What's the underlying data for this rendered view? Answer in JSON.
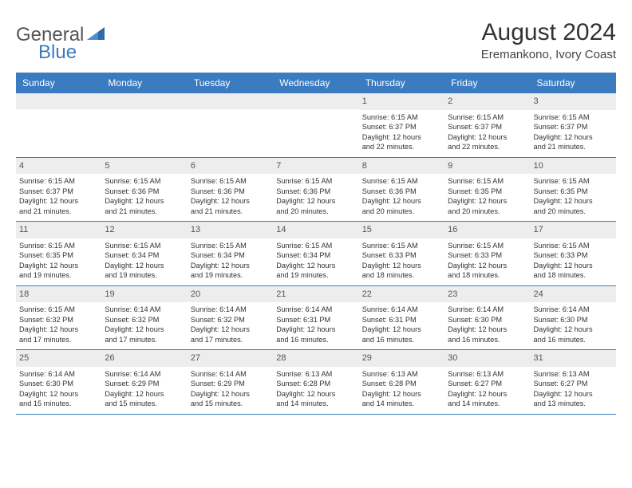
{
  "logo": {
    "part1": "General",
    "part2": "Blue"
  },
  "title": "August 2024",
  "location": "Eremankono, Ivory Coast",
  "colors": {
    "header_blue": "#3b7bbf",
    "daynum_bg": "#ededed",
    "text": "#333333"
  },
  "days_of_week": [
    "Sunday",
    "Monday",
    "Tuesday",
    "Wednesday",
    "Thursday",
    "Friday",
    "Saturday"
  ],
  "weeks": [
    [
      null,
      null,
      null,
      null,
      {
        "n": "1",
        "sr": "Sunrise: 6:15 AM",
        "ss": "Sunset: 6:37 PM",
        "d1": "Daylight: 12 hours",
        "d2": "and 22 minutes."
      },
      {
        "n": "2",
        "sr": "Sunrise: 6:15 AM",
        "ss": "Sunset: 6:37 PM",
        "d1": "Daylight: 12 hours",
        "d2": "and 22 minutes."
      },
      {
        "n": "3",
        "sr": "Sunrise: 6:15 AM",
        "ss": "Sunset: 6:37 PM",
        "d1": "Daylight: 12 hours",
        "d2": "and 21 minutes."
      }
    ],
    [
      {
        "n": "4",
        "sr": "Sunrise: 6:15 AM",
        "ss": "Sunset: 6:37 PM",
        "d1": "Daylight: 12 hours",
        "d2": "and 21 minutes."
      },
      {
        "n": "5",
        "sr": "Sunrise: 6:15 AM",
        "ss": "Sunset: 6:36 PM",
        "d1": "Daylight: 12 hours",
        "d2": "and 21 minutes."
      },
      {
        "n": "6",
        "sr": "Sunrise: 6:15 AM",
        "ss": "Sunset: 6:36 PM",
        "d1": "Daylight: 12 hours",
        "d2": "and 21 minutes."
      },
      {
        "n": "7",
        "sr": "Sunrise: 6:15 AM",
        "ss": "Sunset: 6:36 PM",
        "d1": "Daylight: 12 hours",
        "d2": "and 20 minutes."
      },
      {
        "n": "8",
        "sr": "Sunrise: 6:15 AM",
        "ss": "Sunset: 6:36 PM",
        "d1": "Daylight: 12 hours",
        "d2": "and 20 minutes."
      },
      {
        "n": "9",
        "sr": "Sunrise: 6:15 AM",
        "ss": "Sunset: 6:35 PM",
        "d1": "Daylight: 12 hours",
        "d2": "and 20 minutes."
      },
      {
        "n": "10",
        "sr": "Sunrise: 6:15 AM",
        "ss": "Sunset: 6:35 PM",
        "d1": "Daylight: 12 hours",
        "d2": "and 20 minutes."
      }
    ],
    [
      {
        "n": "11",
        "sr": "Sunrise: 6:15 AM",
        "ss": "Sunset: 6:35 PM",
        "d1": "Daylight: 12 hours",
        "d2": "and 19 minutes."
      },
      {
        "n": "12",
        "sr": "Sunrise: 6:15 AM",
        "ss": "Sunset: 6:34 PM",
        "d1": "Daylight: 12 hours",
        "d2": "and 19 minutes."
      },
      {
        "n": "13",
        "sr": "Sunrise: 6:15 AM",
        "ss": "Sunset: 6:34 PM",
        "d1": "Daylight: 12 hours",
        "d2": "and 19 minutes."
      },
      {
        "n": "14",
        "sr": "Sunrise: 6:15 AM",
        "ss": "Sunset: 6:34 PM",
        "d1": "Daylight: 12 hours",
        "d2": "and 19 minutes."
      },
      {
        "n": "15",
        "sr": "Sunrise: 6:15 AM",
        "ss": "Sunset: 6:33 PM",
        "d1": "Daylight: 12 hours",
        "d2": "and 18 minutes."
      },
      {
        "n": "16",
        "sr": "Sunrise: 6:15 AM",
        "ss": "Sunset: 6:33 PM",
        "d1": "Daylight: 12 hours",
        "d2": "and 18 minutes."
      },
      {
        "n": "17",
        "sr": "Sunrise: 6:15 AM",
        "ss": "Sunset: 6:33 PM",
        "d1": "Daylight: 12 hours",
        "d2": "and 18 minutes."
      }
    ],
    [
      {
        "n": "18",
        "sr": "Sunrise: 6:15 AM",
        "ss": "Sunset: 6:32 PM",
        "d1": "Daylight: 12 hours",
        "d2": "and 17 minutes."
      },
      {
        "n": "19",
        "sr": "Sunrise: 6:14 AM",
        "ss": "Sunset: 6:32 PM",
        "d1": "Daylight: 12 hours",
        "d2": "and 17 minutes."
      },
      {
        "n": "20",
        "sr": "Sunrise: 6:14 AM",
        "ss": "Sunset: 6:32 PM",
        "d1": "Daylight: 12 hours",
        "d2": "and 17 minutes."
      },
      {
        "n": "21",
        "sr": "Sunrise: 6:14 AM",
        "ss": "Sunset: 6:31 PM",
        "d1": "Daylight: 12 hours",
        "d2": "and 16 minutes."
      },
      {
        "n": "22",
        "sr": "Sunrise: 6:14 AM",
        "ss": "Sunset: 6:31 PM",
        "d1": "Daylight: 12 hours",
        "d2": "and 16 minutes."
      },
      {
        "n": "23",
        "sr": "Sunrise: 6:14 AM",
        "ss": "Sunset: 6:30 PM",
        "d1": "Daylight: 12 hours",
        "d2": "and 16 minutes."
      },
      {
        "n": "24",
        "sr": "Sunrise: 6:14 AM",
        "ss": "Sunset: 6:30 PM",
        "d1": "Daylight: 12 hours",
        "d2": "and 16 minutes."
      }
    ],
    [
      {
        "n": "25",
        "sr": "Sunrise: 6:14 AM",
        "ss": "Sunset: 6:30 PM",
        "d1": "Daylight: 12 hours",
        "d2": "and 15 minutes."
      },
      {
        "n": "26",
        "sr": "Sunrise: 6:14 AM",
        "ss": "Sunset: 6:29 PM",
        "d1": "Daylight: 12 hours",
        "d2": "and 15 minutes."
      },
      {
        "n": "27",
        "sr": "Sunrise: 6:14 AM",
        "ss": "Sunset: 6:29 PM",
        "d1": "Daylight: 12 hours",
        "d2": "and 15 minutes."
      },
      {
        "n": "28",
        "sr": "Sunrise: 6:13 AM",
        "ss": "Sunset: 6:28 PM",
        "d1": "Daylight: 12 hours",
        "d2": "and 14 minutes."
      },
      {
        "n": "29",
        "sr": "Sunrise: 6:13 AM",
        "ss": "Sunset: 6:28 PM",
        "d1": "Daylight: 12 hours",
        "d2": "and 14 minutes."
      },
      {
        "n": "30",
        "sr": "Sunrise: 6:13 AM",
        "ss": "Sunset: 6:27 PM",
        "d1": "Daylight: 12 hours",
        "d2": "and 14 minutes."
      },
      {
        "n": "31",
        "sr": "Sunrise: 6:13 AM",
        "ss": "Sunset: 6:27 PM",
        "d1": "Daylight: 12 hours",
        "d2": "and 13 minutes."
      }
    ]
  ]
}
